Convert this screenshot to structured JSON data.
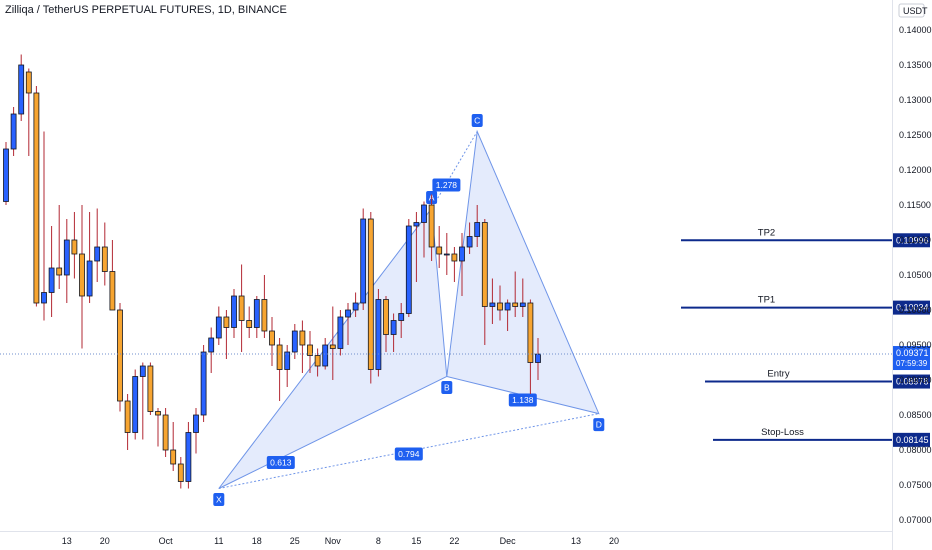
{
  "header": {
    "title": "Zilliqa / TetherUS PERPETUAL FUTURES, 1D, BINANCE"
  },
  "chart_data": {
    "type": "candlestick",
    "ylim": [
      0.0695,
      0.1445
    ],
    "x_ticks": [
      {
        "i": 8,
        "label": "13"
      },
      {
        "i": 13,
        "label": "20"
      },
      {
        "i": 21,
        "label": "Oct"
      },
      {
        "i": 28,
        "label": "11"
      },
      {
        "i": 33,
        "label": "18"
      },
      {
        "i": 38,
        "label": "25"
      },
      {
        "i": 43,
        "label": "Nov"
      },
      {
        "i": 49,
        "label": "8"
      },
      {
        "i": 54,
        "label": "15"
      },
      {
        "i": 59,
        "label": "22"
      },
      {
        "i": 66,
        "label": "Dec"
      },
      {
        "i": 75,
        "label": "13"
      },
      {
        "i": 80,
        "label": "20"
      }
    ],
    "y_ticks": [
      "0.07000",
      "0.07500",
      "0.08000",
      "0.08500",
      "0.09000",
      "0.09500",
      "0.10000",
      "0.10500",
      "0.11000",
      "0.11500",
      "0.12000",
      "0.12500",
      "0.13000",
      "0.13500",
      "0.14000"
    ],
    "currency_label": "USDT",
    "candles": [
      [
        0.1155,
        0.124,
        0.115,
        0.123
      ],
      [
        0.123,
        0.129,
        0.122,
        0.128
      ],
      [
        0.128,
        0.1365,
        0.127,
        0.135
      ],
      [
        0.134,
        0.1345,
        0.122,
        0.131
      ],
      [
        0.131,
        0.132,
        0.1005,
        0.101
      ],
      [
        0.101,
        0.1255,
        0.0985,
        0.1025
      ],
      [
        0.1025,
        0.112,
        0.099,
        0.106
      ],
      [
        0.106,
        0.115,
        0.103,
        0.105
      ],
      [
        0.105,
        0.113,
        0.101,
        0.11
      ],
      [
        0.11,
        0.114,
        0.1045,
        0.108
      ],
      [
        0.108,
        0.115,
        0.0945,
        0.102
      ],
      [
        0.102,
        0.114,
        0.101,
        0.107
      ],
      [
        0.107,
        0.1145,
        0.104,
        0.109
      ],
      [
        0.109,
        0.1125,
        0.1035,
        0.1055
      ],
      [
        0.1055,
        0.11,
        0.1,
        0.1
      ],
      [
        0.1,
        0.101,
        0.0855,
        0.087
      ],
      [
        0.087,
        0.088,
        0.08,
        0.0825
      ],
      [
        0.0825,
        0.0915,
        0.0815,
        0.0905
      ],
      [
        0.0905,
        0.0925,
        0.0815,
        0.092
      ],
      [
        0.092,
        0.0925,
        0.085,
        0.0855
      ],
      [
        0.0855,
        0.086,
        0.0805,
        0.085
      ],
      [
        0.085,
        0.086,
        0.079,
        0.08
      ],
      [
        0.08,
        0.084,
        0.077,
        0.078
      ],
      [
        0.078,
        0.079,
        0.0745,
        0.0755
      ],
      [
        0.0755,
        0.084,
        0.0745,
        0.0825
      ],
      [
        0.0825,
        0.086,
        0.0795,
        0.085
      ],
      [
        0.085,
        0.095,
        0.084,
        0.094
      ],
      [
        0.094,
        0.0975,
        0.091,
        0.096
      ],
      [
        0.096,
        0.1005,
        0.095,
        0.099
      ],
      [
        0.099,
        0.1,
        0.093,
        0.0975
      ],
      [
        0.0975,
        0.103,
        0.096,
        0.102
      ],
      [
        0.102,
        0.1065,
        0.094,
        0.0985
      ],
      [
        0.0985,
        0.1005,
        0.096,
        0.0975
      ],
      [
        0.0975,
        0.102,
        0.096,
        0.1015
      ],
      [
        0.1015,
        0.105,
        0.096,
        0.097
      ],
      [
        0.097,
        0.099,
        0.092,
        0.095
      ],
      [
        0.095,
        0.096,
        0.087,
        0.0915
      ],
      [
        0.0915,
        0.095,
        0.089,
        0.094
      ],
      [
        0.094,
        0.098,
        0.093,
        0.097
      ],
      [
        0.097,
        0.0985,
        0.091,
        0.095
      ],
      [
        0.095,
        0.097,
        0.091,
        0.0935
      ],
      [
        0.0935,
        0.0945,
        0.0905,
        0.092
      ],
      [
        0.092,
        0.096,
        0.0915,
        0.095
      ],
      [
        0.095,
        0.1005,
        0.09,
        0.0945
      ],
      [
        0.0945,
        0.1,
        0.0935,
        0.099
      ],
      [
        0.099,
        0.101,
        0.095,
        0.1
      ],
      [
        0.1,
        0.1025,
        0.099,
        0.101
      ],
      [
        0.101,
        0.1145,
        0.1,
        0.113
      ],
      [
        0.113,
        0.114,
        0.0895,
        0.0915
      ],
      [
        0.0915,
        0.103,
        0.0905,
        0.1015
      ],
      [
        0.1015,
        0.102,
        0.094,
        0.0965
      ],
      [
        0.0965,
        0.0995,
        0.094,
        0.0985
      ],
      [
        0.0985,
        0.101,
        0.096,
        0.0995
      ],
      [
        0.0995,
        0.113,
        0.099,
        0.112
      ],
      [
        0.112,
        0.114,
        0.104,
        0.1125
      ],
      [
        0.1125,
        0.1155,
        0.1075,
        0.115
      ],
      [
        0.115,
        0.1165,
        0.107,
        0.109
      ],
      [
        0.109,
        0.112,
        0.106,
        0.108
      ],
      [
        0.108,
        0.111,
        0.105,
        0.108
      ],
      [
        0.108,
        0.109,
        0.104,
        0.107
      ],
      [
        0.107,
        0.111,
        0.102,
        0.109
      ],
      [
        0.109,
        0.1125,
        0.108,
        0.1105
      ],
      [
        0.1105,
        0.115,
        0.109,
        0.1125
      ],
      [
        0.1125,
        0.113,
        0.095,
        0.1005
      ],
      [
        0.1005,
        0.1045,
        0.098,
        0.101
      ],
      [
        0.101,
        0.1035,
        0.0985,
        0.1
      ],
      [
        0.1,
        0.1015,
        0.097,
        0.101
      ],
      [
        0.101,
        0.1055,
        0.099,
        0.1005
      ],
      [
        0.1005,
        0.1045,
        0.099,
        0.101
      ],
      [
        0.101,
        0.1015,
        0.088,
        0.0925
      ],
      [
        0.0925,
        0.096,
        0.09,
        0.0937
      ]
    ],
    "pattern": {
      "points": [
        {
          "label": "X",
          "i": 28,
          "price": 0.0745
        },
        {
          "label": "A",
          "i": 56,
          "price": 0.1145
        },
        {
          "label": "B",
          "i": 58,
          "price": 0.0905
        },
        {
          "label": "C",
          "i": 62,
          "price": 0.1255
        },
        {
          "label": "D",
          "i": 78,
          "price": 0.0852
        }
      ],
      "ratios": [
        "0.613",
        "1.278",
        "1.138",
        "0.794"
      ]
    },
    "levels": [
      {
        "name": "TP2",
        "value": 0.10996,
        "label": "0.10996"
      },
      {
        "name": "TP1",
        "value": 0.10034,
        "label": "0.10034"
      },
      {
        "name": "Entry",
        "value": 0.08978,
        "label": "0.08978"
      },
      {
        "name": "Stop-Loss",
        "value": 0.08145,
        "label": "0.08145"
      }
    ],
    "current_price": {
      "value": 0.09371,
      "label": "0.09371",
      "countdown": "07:59:39"
    }
  },
  "colors": {
    "up": "#2962ff",
    "down": "#f7a531",
    "candle_outline": "#131722",
    "wick": "#b22833",
    "pattern_fill": "#dbe4fb",
    "pattern_line": "#6f95e8",
    "level": "#0d2a8c",
    "tag": "#1e5ff0",
    "price_line": "#6f8fcc"
  }
}
